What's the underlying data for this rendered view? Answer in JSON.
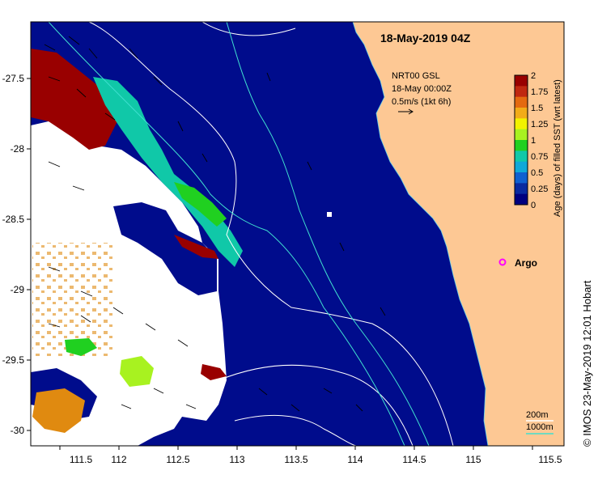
{
  "map": {
    "title": "18-May-2019 04Z",
    "credit": "© IMOS 23-May-2019 12:01 Hobart",
    "lon_labels": [
      "111.5",
      "112",
      "112.5",
      "113",
      "113.5",
      "114",
      "114.5",
      "115",
      "115.5"
    ],
    "lat_labels": [
      "-27.5",
      "-28",
      "-28.5",
      "-29",
      "-29.5",
      "-30"
    ],
    "current_vectors": {
      "source": "NRT00 GSL",
      "time": "18-May 00:00Z",
      "scale": "0.5m/s (1kt 6h)"
    },
    "colorbar": {
      "label": "Age (days) of filled SST (wrt latest)",
      "ticks": [
        "2",
        "1.75",
        "1.5",
        "1.25",
        "1",
        "0.75",
        "0.5",
        "0.25",
        "0"
      ],
      "colors": [
        "#990000",
        "#c02810",
        "#e46a10",
        "#f2ac18",
        "#f2f200",
        "#a8f220",
        "#20d020",
        "#10c8a8",
        "#10a8d8",
        "#1060d0",
        "#0a2aa0",
        "#000080"
      ]
    },
    "argo": {
      "label": "Argo",
      "color": "#ff00ff"
    },
    "isobaths": [
      {
        "label": "200m",
        "color": "#ffffff"
      },
      {
        "label": "1000m",
        "color": "#40e0d0"
      }
    ],
    "colors": {
      "ocean": "#000c8c",
      "land": "#fdc894",
      "missing": "#ffffff",
      "track": "#5fd0ea"
    }
  }
}
